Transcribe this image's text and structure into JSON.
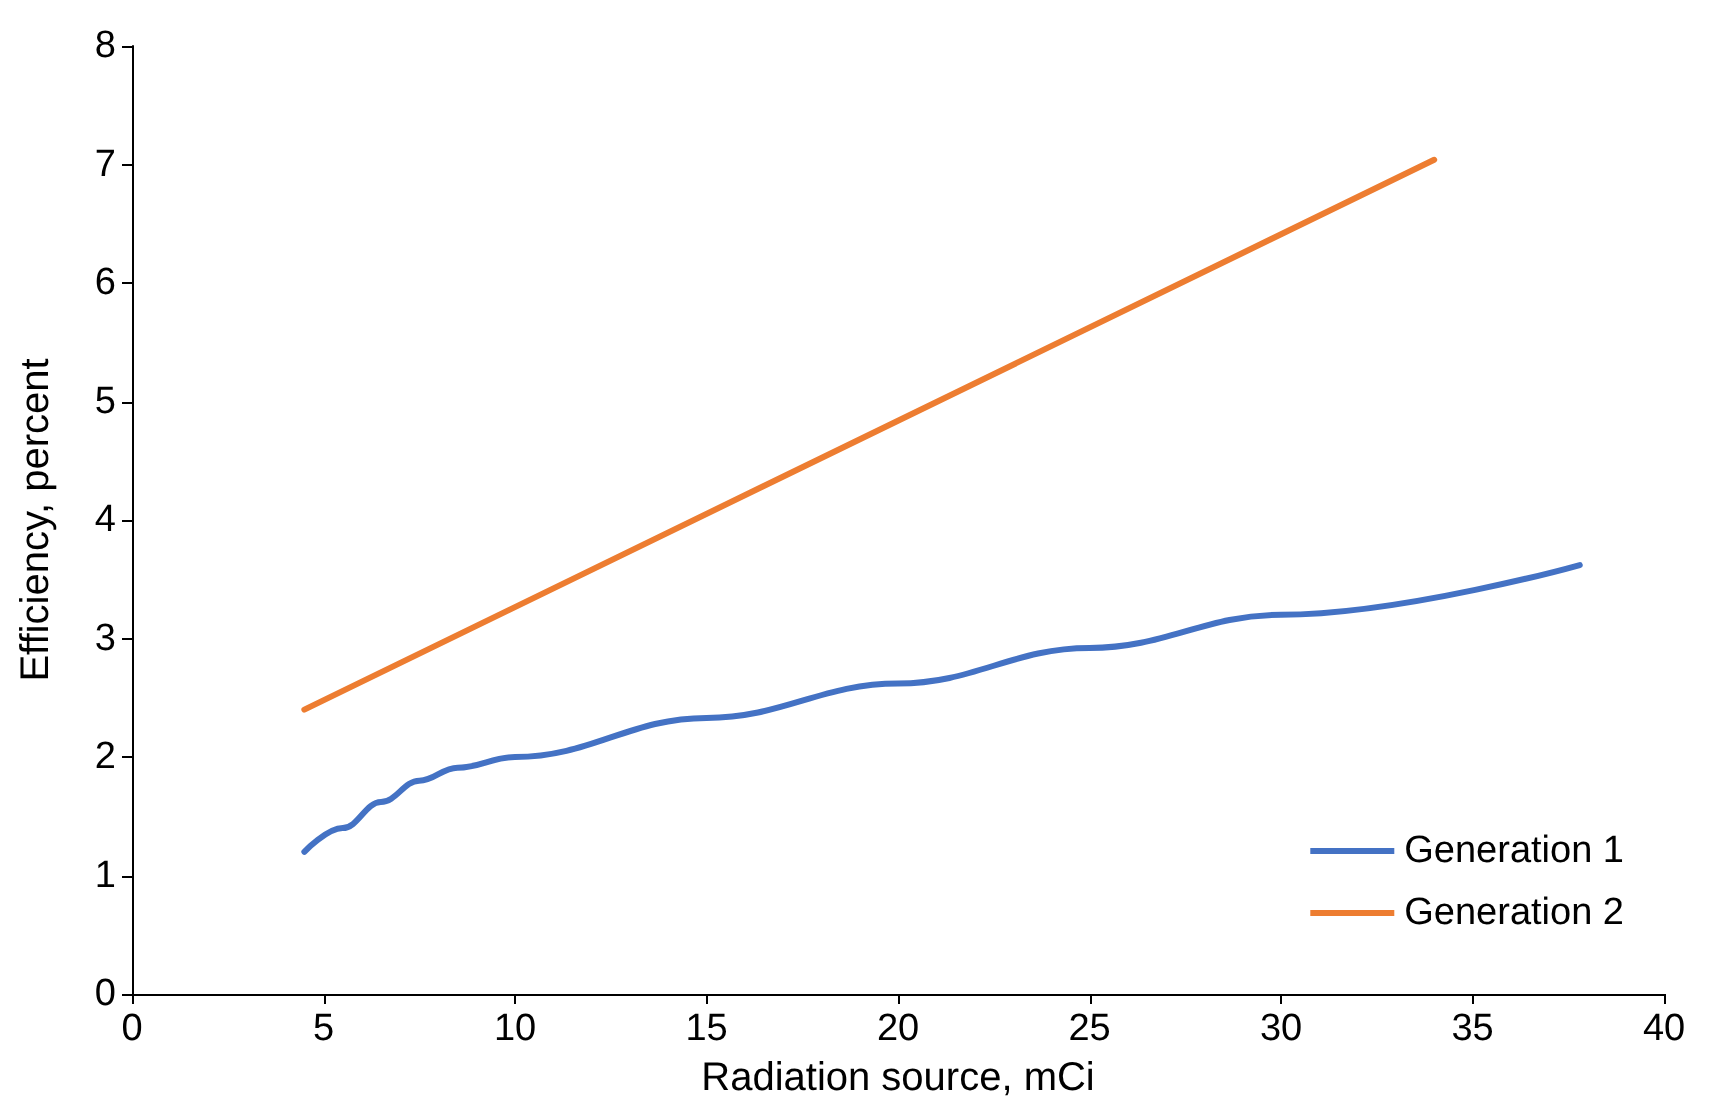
{
  "chart_data": {
    "type": "line",
    "xlabel": "Radiation source, mCi",
    "ylabel": "Efficiency, percent",
    "xlim": [
      0,
      40
    ],
    "xticks": [
      0,
      5,
      10,
      15,
      20,
      25,
      30,
      35,
      40
    ],
    "ylim": [
      0,
      8
    ],
    "yticks": [
      0,
      1,
      2,
      3,
      4,
      5,
      6,
      7,
      8
    ],
    "grid": false,
    "legend": "bottom right",
    "marker": "none",
    "line_style": "solid",
    "series": [
      {
        "name": "Generation 1",
        "color": "#4472c4",
        "x": [
          4.5,
          5.5,
          6.5,
          7.5,
          8.5,
          10,
          15,
          20,
          25,
          30,
          37.8
        ],
        "values": [
          1.2,
          1.4,
          1.62,
          1.8,
          1.91,
          2.0,
          2.33,
          2.62,
          2.92,
          3.2,
          3.62
        ]
      },
      {
        "name": "Generation 2",
        "color": "#ed7d31",
        "x": [
          4.5,
          34
        ],
        "values": [
          2.4,
          7.04
        ]
      }
    ]
  }
}
